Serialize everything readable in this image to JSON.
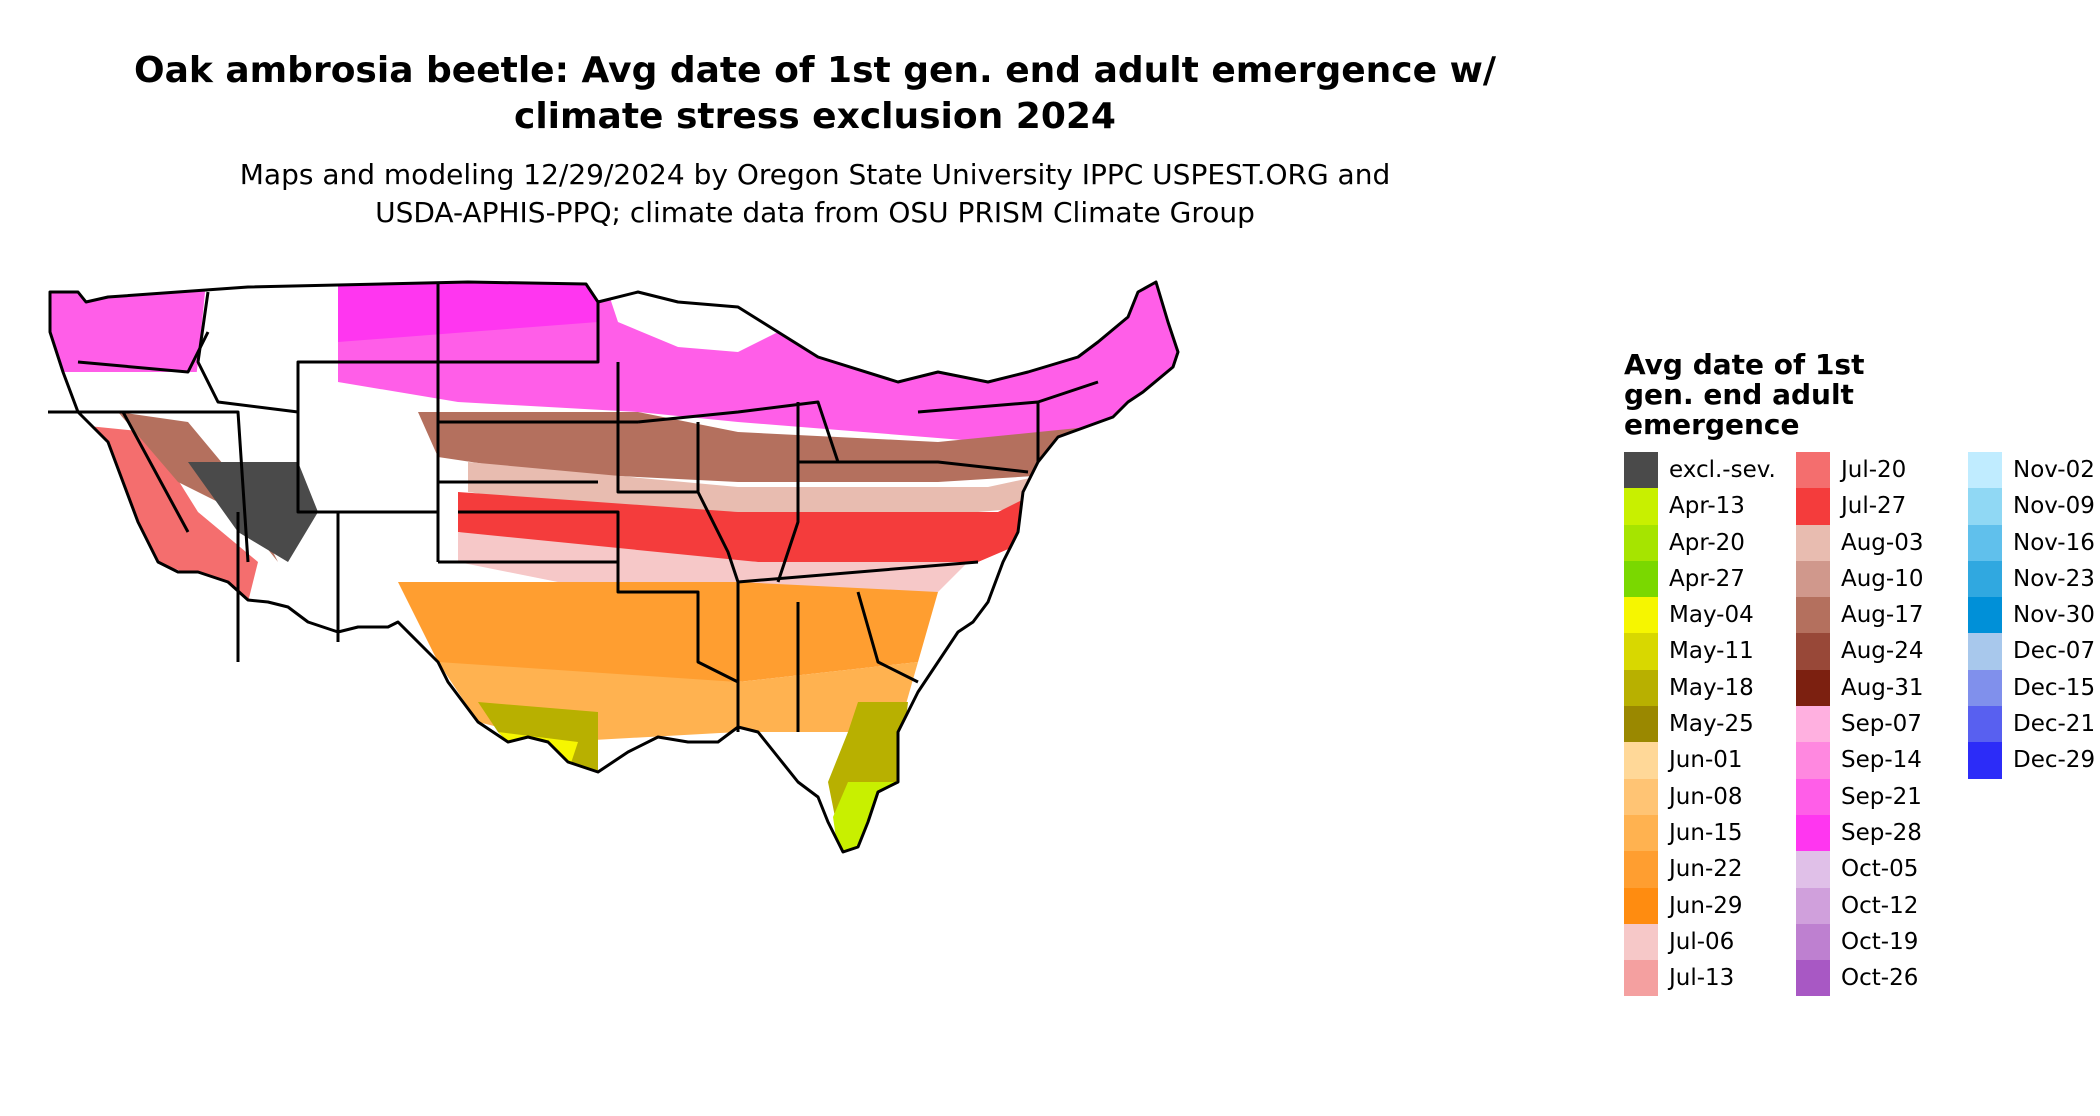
{
  "title_line1": "Oak ambrosia beetle: Avg date of 1st gen. end adult emergence w/",
  "title_line2": "climate stress exclusion 2024",
  "subtitle_line1": "Maps and modeling 12/29/2024 by Oregon State University IPPC USPEST.ORG and",
  "subtitle_line2": "USDA-APHIS-PPQ; climate data from OSU PRISM Climate Group",
  "legend": {
    "title_line1": "Avg date of 1st",
    "title_line2": "gen. end adult",
    "title_line3": "emergence",
    "items": [
      {
        "label": "excl.-sev.",
        "color": "#4a4a4a"
      },
      {
        "label": "Apr-13",
        "color": "#c8f000"
      },
      {
        "label": "Apr-20",
        "color": "#a6e400"
      },
      {
        "label": "Apr-27",
        "color": "#7ad800"
      },
      {
        "label": "May-04",
        "color": "#f6f600"
      },
      {
        "label": "May-11",
        "color": "#d8d800"
      },
      {
        "label": "May-18",
        "color": "#b8b000"
      },
      {
        "label": "May-25",
        "color": "#9a8800"
      },
      {
        "label": "Jun-01",
        "color": "#ffd898"
      },
      {
        "label": "Jun-08",
        "color": "#ffc474"
      },
      {
        "label": "Jun-15",
        "color": "#ffb250"
      },
      {
        "label": "Jun-22",
        "color": "#ff9e30"
      },
      {
        "label": "Jun-29",
        "color": "#ff8c10"
      },
      {
        "label": "Jul-06",
        "color": "#f6c8c8"
      },
      {
        "label": "Jul-13",
        "color": "#f4a0a0"
      },
      {
        "label": "Jul-20",
        "color": "#f46e6e"
      },
      {
        "label": "Jul-27",
        "color": "#f43c3c"
      },
      {
        "label": "Aug-03",
        "color": "#e8bcb0"
      },
      {
        "label": "Aug-10",
        "color": "#d0988c"
      },
      {
        "label": "Aug-17",
        "color": "#b4705e"
      },
      {
        "label": "Aug-24",
        "color": "#984838"
      },
      {
        "label": "Aug-31",
        "color": "#7c2010"
      },
      {
        "label": "Sep-07",
        "color": "#ffb0e0"
      },
      {
        "label": "Sep-14",
        "color": "#ff88e0"
      },
      {
        "label": "Sep-21",
        "color": "#ff5ee8"
      },
      {
        "label": "Sep-28",
        "color": "#ff36f0"
      },
      {
        "label": "Oct-05",
        "color": "#e0c0e8"
      },
      {
        "label": "Oct-12",
        "color": "#d0a0dc"
      },
      {
        "label": "Oct-19",
        "color": "#be80d0"
      },
      {
        "label": "Oct-26",
        "color": "#a858c4"
      },
      {
        "label": "Nov-02",
        "color": "#c0ecff"
      },
      {
        "label": "Nov-09",
        "color": "#90d8f4"
      },
      {
        "label": "Nov-16",
        "color": "#60c0ec"
      },
      {
        "label": "Nov-23",
        "color": "#30a8e0"
      },
      {
        "label": "Nov-30",
        "color": "#0090d8"
      },
      {
        "label": "Dec-07",
        "color": "#a8c8ec"
      },
      {
        "label": "Dec-15",
        "color": "#8090ec"
      },
      {
        "label": "Dec-21",
        "color": "#5860f0"
      },
      {
        "label": "Dec-29",
        "color": "#2c2cf8"
      }
    ]
  }
}
